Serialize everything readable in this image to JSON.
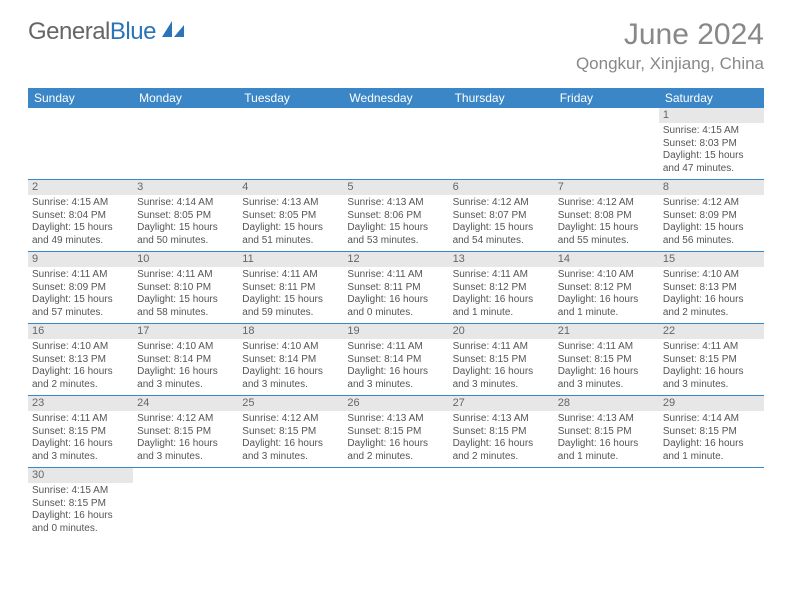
{
  "logo": {
    "text1": "General",
    "text2": "Blue"
  },
  "title": "June 2024",
  "location": "Qongkur, Xinjiang, China",
  "weekdays": [
    "Sunday",
    "Monday",
    "Tuesday",
    "Wednesday",
    "Thursday",
    "Friday",
    "Saturday"
  ],
  "colors": {
    "header_bg": "#3b86c6",
    "header_text": "#ffffff",
    "daynum_bg": "#e7e7e7",
    "body_text": "#555555",
    "title_text": "#888888"
  },
  "weeks": [
    [
      {
        "blank": true
      },
      {
        "blank": true
      },
      {
        "blank": true
      },
      {
        "blank": true
      },
      {
        "blank": true
      },
      {
        "blank": true
      },
      {
        "n": "1",
        "sr": "Sunrise: 4:15 AM",
        "ss": "Sunset: 8:03 PM",
        "dl1": "Daylight: 15 hours",
        "dl2": "and 47 minutes."
      }
    ],
    [
      {
        "n": "2",
        "sr": "Sunrise: 4:15 AM",
        "ss": "Sunset: 8:04 PM",
        "dl1": "Daylight: 15 hours",
        "dl2": "and 49 minutes."
      },
      {
        "n": "3",
        "sr": "Sunrise: 4:14 AM",
        "ss": "Sunset: 8:05 PM",
        "dl1": "Daylight: 15 hours",
        "dl2": "and 50 minutes."
      },
      {
        "n": "4",
        "sr": "Sunrise: 4:13 AM",
        "ss": "Sunset: 8:05 PM",
        "dl1": "Daylight: 15 hours",
        "dl2": "and 51 minutes."
      },
      {
        "n": "5",
        "sr": "Sunrise: 4:13 AM",
        "ss": "Sunset: 8:06 PM",
        "dl1": "Daylight: 15 hours",
        "dl2": "and 53 minutes."
      },
      {
        "n": "6",
        "sr": "Sunrise: 4:12 AM",
        "ss": "Sunset: 8:07 PM",
        "dl1": "Daylight: 15 hours",
        "dl2": "and 54 minutes."
      },
      {
        "n": "7",
        "sr": "Sunrise: 4:12 AM",
        "ss": "Sunset: 8:08 PM",
        "dl1": "Daylight: 15 hours",
        "dl2": "and 55 minutes."
      },
      {
        "n": "8",
        "sr": "Sunrise: 4:12 AM",
        "ss": "Sunset: 8:09 PM",
        "dl1": "Daylight: 15 hours",
        "dl2": "and 56 minutes."
      }
    ],
    [
      {
        "n": "9",
        "sr": "Sunrise: 4:11 AM",
        "ss": "Sunset: 8:09 PM",
        "dl1": "Daylight: 15 hours",
        "dl2": "and 57 minutes."
      },
      {
        "n": "10",
        "sr": "Sunrise: 4:11 AM",
        "ss": "Sunset: 8:10 PM",
        "dl1": "Daylight: 15 hours",
        "dl2": "and 58 minutes."
      },
      {
        "n": "11",
        "sr": "Sunrise: 4:11 AM",
        "ss": "Sunset: 8:11 PM",
        "dl1": "Daylight: 15 hours",
        "dl2": "and 59 minutes."
      },
      {
        "n": "12",
        "sr": "Sunrise: 4:11 AM",
        "ss": "Sunset: 8:11 PM",
        "dl1": "Daylight: 16 hours",
        "dl2": "and 0 minutes."
      },
      {
        "n": "13",
        "sr": "Sunrise: 4:11 AM",
        "ss": "Sunset: 8:12 PM",
        "dl1": "Daylight: 16 hours",
        "dl2": "and 1 minute."
      },
      {
        "n": "14",
        "sr": "Sunrise: 4:10 AM",
        "ss": "Sunset: 8:12 PM",
        "dl1": "Daylight: 16 hours",
        "dl2": "and 1 minute."
      },
      {
        "n": "15",
        "sr": "Sunrise: 4:10 AM",
        "ss": "Sunset: 8:13 PM",
        "dl1": "Daylight: 16 hours",
        "dl2": "and 2 minutes."
      }
    ],
    [
      {
        "n": "16",
        "sr": "Sunrise: 4:10 AM",
        "ss": "Sunset: 8:13 PM",
        "dl1": "Daylight: 16 hours",
        "dl2": "and 2 minutes."
      },
      {
        "n": "17",
        "sr": "Sunrise: 4:10 AM",
        "ss": "Sunset: 8:14 PM",
        "dl1": "Daylight: 16 hours",
        "dl2": "and 3 minutes."
      },
      {
        "n": "18",
        "sr": "Sunrise: 4:10 AM",
        "ss": "Sunset: 8:14 PM",
        "dl1": "Daylight: 16 hours",
        "dl2": "and 3 minutes."
      },
      {
        "n": "19",
        "sr": "Sunrise: 4:11 AM",
        "ss": "Sunset: 8:14 PM",
        "dl1": "Daylight: 16 hours",
        "dl2": "and 3 minutes."
      },
      {
        "n": "20",
        "sr": "Sunrise: 4:11 AM",
        "ss": "Sunset: 8:15 PM",
        "dl1": "Daylight: 16 hours",
        "dl2": "and 3 minutes."
      },
      {
        "n": "21",
        "sr": "Sunrise: 4:11 AM",
        "ss": "Sunset: 8:15 PM",
        "dl1": "Daylight: 16 hours",
        "dl2": "and 3 minutes."
      },
      {
        "n": "22",
        "sr": "Sunrise: 4:11 AM",
        "ss": "Sunset: 8:15 PM",
        "dl1": "Daylight: 16 hours",
        "dl2": "and 3 minutes."
      }
    ],
    [
      {
        "n": "23",
        "sr": "Sunrise: 4:11 AM",
        "ss": "Sunset: 8:15 PM",
        "dl1": "Daylight: 16 hours",
        "dl2": "and 3 minutes."
      },
      {
        "n": "24",
        "sr": "Sunrise: 4:12 AM",
        "ss": "Sunset: 8:15 PM",
        "dl1": "Daylight: 16 hours",
        "dl2": "and 3 minutes."
      },
      {
        "n": "25",
        "sr": "Sunrise: 4:12 AM",
        "ss": "Sunset: 8:15 PM",
        "dl1": "Daylight: 16 hours",
        "dl2": "and 3 minutes."
      },
      {
        "n": "26",
        "sr": "Sunrise: 4:13 AM",
        "ss": "Sunset: 8:15 PM",
        "dl1": "Daylight: 16 hours",
        "dl2": "and 2 minutes."
      },
      {
        "n": "27",
        "sr": "Sunrise: 4:13 AM",
        "ss": "Sunset: 8:15 PM",
        "dl1": "Daylight: 16 hours",
        "dl2": "and 2 minutes."
      },
      {
        "n": "28",
        "sr": "Sunrise: 4:13 AM",
        "ss": "Sunset: 8:15 PM",
        "dl1": "Daylight: 16 hours",
        "dl2": "and 1 minute."
      },
      {
        "n": "29",
        "sr": "Sunrise: 4:14 AM",
        "ss": "Sunset: 8:15 PM",
        "dl1": "Daylight: 16 hours",
        "dl2": "and 1 minute."
      }
    ],
    [
      {
        "n": "30",
        "sr": "Sunrise: 4:15 AM",
        "ss": "Sunset: 8:15 PM",
        "dl1": "Daylight: 16 hours",
        "dl2": "and 0 minutes."
      },
      {
        "blank": true
      },
      {
        "blank": true
      },
      {
        "blank": true
      },
      {
        "blank": true
      },
      {
        "blank": true
      },
      {
        "blank": true
      }
    ]
  ]
}
